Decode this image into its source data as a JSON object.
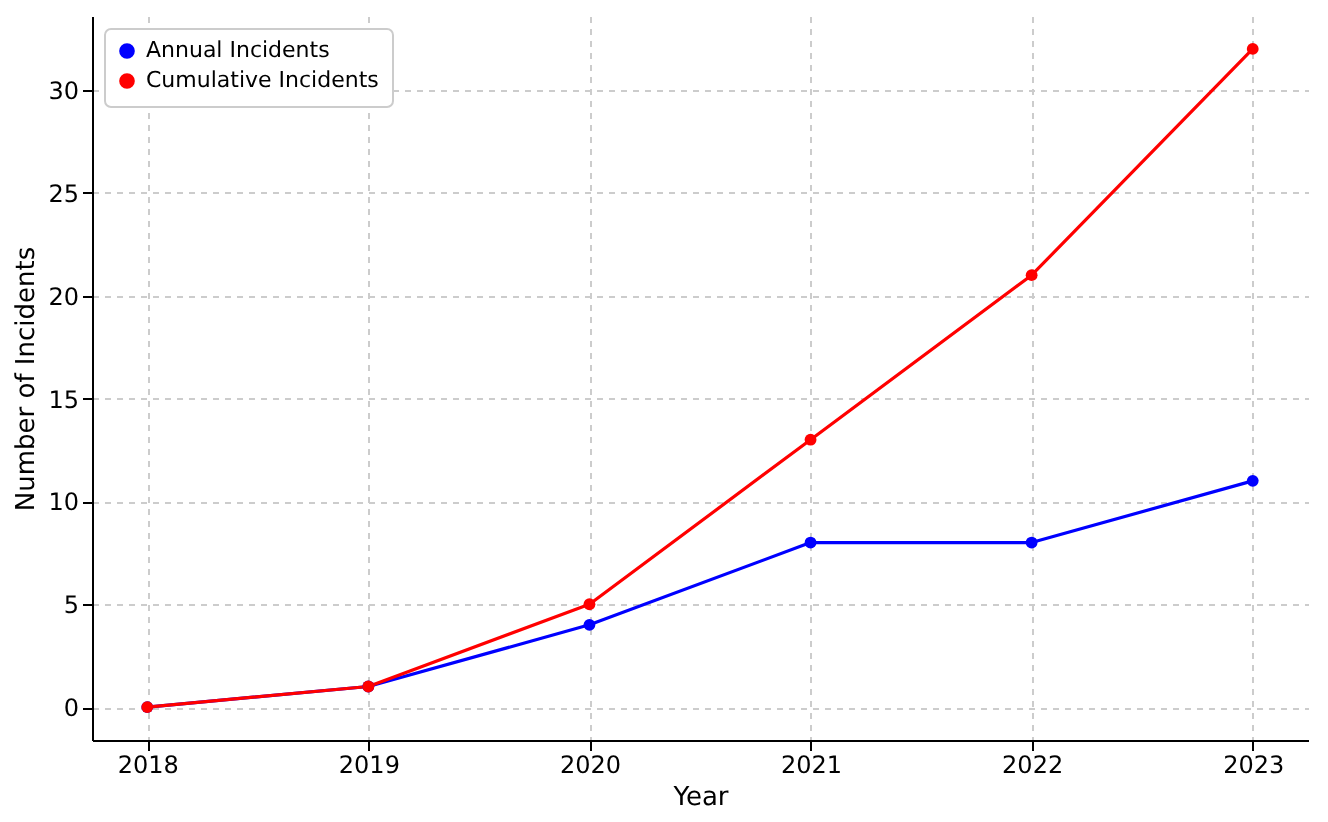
{
  "chart_data": {
    "type": "line",
    "xlabel": "Year",
    "ylabel": "Number of Incidents",
    "x": [
      2018,
      2019,
      2020,
      2021,
      2022,
      2023
    ],
    "series": [
      {
        "name": "Annual Incidents",
        "color": "#0000ff",
        "values": [
          0,
          1,
          4,
          8,
          8,
          11
        ]
      },
      {
        "name": "Cumulative Incidents",
        "color": "#ff0000",
        "values": [
          0,
          1,
          5,
          13,
          21,
          32
        ]
      }
    ],
    "xlim": [
      2017.75,
      2023.25
    ],
    "ylim": [
      -1.6,
      33.6
    ],
    "xticks": [
      2018,
      2019,
      2020,
      2021,
      2022,
      2023
    ],
    "yticks": [
      0,
      5,
      10,
      15,
      20,
      25,
      30
    ],
    "grid": true,
    "legend": "top left",
    "marker": "circle",
    "line_style": "solid"
  }
}
